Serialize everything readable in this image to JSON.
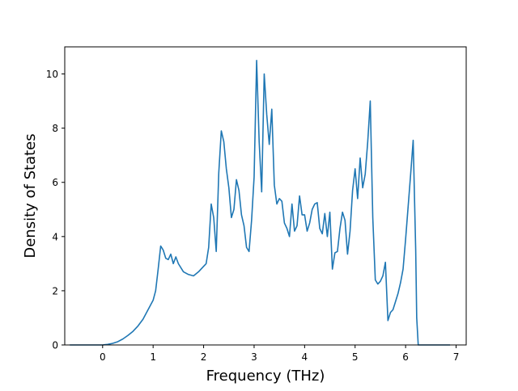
{
  "colors": {
    "series": "#1f77b4",
    "axes": "#000000",
    "background": "#ffffff"
  },
  "chart_data": {
    "type": "line",
    "title": "",
    "xlabel": "Frequency (THz)",
    "ylabel": "Density of States",
    "xlim": [
      -0.75,
      7.2
    ],
    "ylim": [
      0,
      11
    ],
    "xticks": [
      0,
      1,
      2,
      3,
      4,
      5,
      6,
      7
    ],
    "yticks": [
      0,
      2,
      4,
      6,
      8,
      10
    ],
    "grid": false,
    "legend": "none",
    "series": [
      {
        "x": [
          -0.65,
          -0.5,
          -0.3,
          -0.1,
          0.0,
          0.1,
          0.2,
          0.3,
          0.4,
          0.5,
          0.6,
          0.7,
          0.8,
          0.9,
          1.0,
          1.05,
          1.1,
          1.15,
          1.2,
          1.25,
          1.3,
          1.35,
          1.4,
          1.45,
          1.5,
          1.6,
          1.7,
          1.8,
          1.9,
          2.0,
          2.05,
          2.1,
          2.15,
          2.2,
          2.25,
          2.3,
          2.35,
          2.4,
          2.45,
          2.5,
          2.55,
          2.6,
          2.65,
          2.7,
          2.75,
          2.8,
          2.85,
          2.9,
          2.95,
          3.0,
          3.05,
          3.1,
          3.15,
          3.2,
          3.25,
          3.3,
          3.35,
          3.4,
          3.45,
          3.5,
          3.55,
          3.6,
          3.65,
          3.7,
          3.75,
          3.8,
          3.85,
          3.9,
          3.95,
          4.0,
          4.05,
          4.1,
          4.15,
          4.2,
          4.25,
          4.3,
          4.35,
          4.4,
          4.45,
          4.5,
          4.55,
          4.6,
          4.65,
          4.7,
          4.75,
          4.8,
          4.85,
          4.9,
          4.95,
          5.0,
          5.05,
          5.1,
          5.15,
          5.2,
          5.25,
          5.3,
          5.35,
          5.4,
          5.45,
          5.5,
          5.55,
          5.6,
          5.65,
          5.7,
          5.75,
          5.8,
          5.85,
          5.9,
          5.95,
          6.0,
          6.05,
          6.1,
          6.15,
          6.2,
          6.22,
          6.25,
          6.3,
          6.5,
          6.88
        ],
        "values": [
          0,
          0,
          0,
          0,
          0.0,
          0.02,
          0.06,
          0.12,
          0.22,
          0.35,
          0.5,
          0.7,
          0.95,
          1.3,
          1.65,
          2.0,
          2.8,
          3.65,
          3.5,
          3.2,
          3.15,
          3.35,
          3.0,
          3.25,
          3.0,
          2.7,
          2.6,
          2.55,
          2.7,
          2.9,
          3.0,
          3.6,
          5.2,
          4.7,
          3.45,
          6.35,
          7.9,
          7.5,
          6.5,
          5.8,
          4.7,
          5.0,
          6.1,
          5.7,
          4.8,
          4.4,
          3.6,
          3.45,
          4.6,
          6.2,
          10.5,
          7.5,
          5.65,
          10.0,
          8.5,
          7.4,
          8.7,
          5.9,
          5.2,
          5.4,
          5.3,
          4.5,
          4.3,
          4.0,
          5.2,
          4.2,
          4.4,
          5.5,
          4.8,
          4.8,
          4.2,
          4.5,
          5.0,
          5.2,
          5.25,
          4.3,
          4.1,
          4.85,
          4.0,
          4.9,
          2.8,
          3.4,
          3.45,
          4.3,
          4.9,
          4.6,
          3.35,
          4.2,
          5.7,
          6.5,
          5.4,
          6.9,
          5.8,
          6.3,
          7.5,
          9.0,
          4.7,
          2.4,
          2.25,
          2.35,
          2.55,
          3.05,
          0.9,
          1.2,
          1.3,
          1.6,
          1.9,
          2.3,
          2.8,
          3.9,
          5.1,
          6.3,
          7.55,
          3.5,
          1.0,
          0,
          0,
          0,
          0
        ]
      }
    ]
  }
}
